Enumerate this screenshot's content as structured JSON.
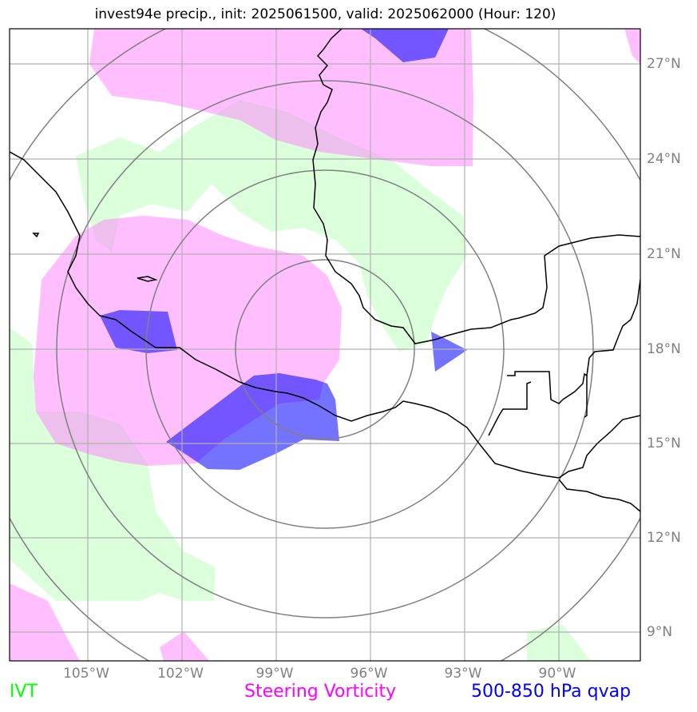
{
  "title": "invest94e precip., init: 2025061500, valid: 2025062000 (Hour: 120)",
  "map": {
    "lat_ticks": [
      "27°N",
      "24°N",
      "21°N",
      "18°N",
      "15°N",
      "12°N",
      "9°N"
    ],
    "lon_ticks": [
      "105°W",
      "102°W",
      "99°W",
      "96°W",
      "93°W",
      "90°W"
    ],
    "range_rings": 4,
    "colors": {
      "ivt": "#ccffcc",
      "vorticity": "#ff80ff",
      "qvap": "#0000ff",
      "coast": "#000000",
      "grid": "#b0b0b0",
      "rings": "#808080"
    }
  },
  "legend": {
    "ivt": {
      "label": "IVT",
      "color": "#00ff00"
    },
    "vorticity": {
      "label": "Steering Vorticity",
      "color": "#ff00ff"
    },
    "qvap": {
      "label": "500-850 hPa qvap",
      "color": "#0000ff"
    }
  }
}
